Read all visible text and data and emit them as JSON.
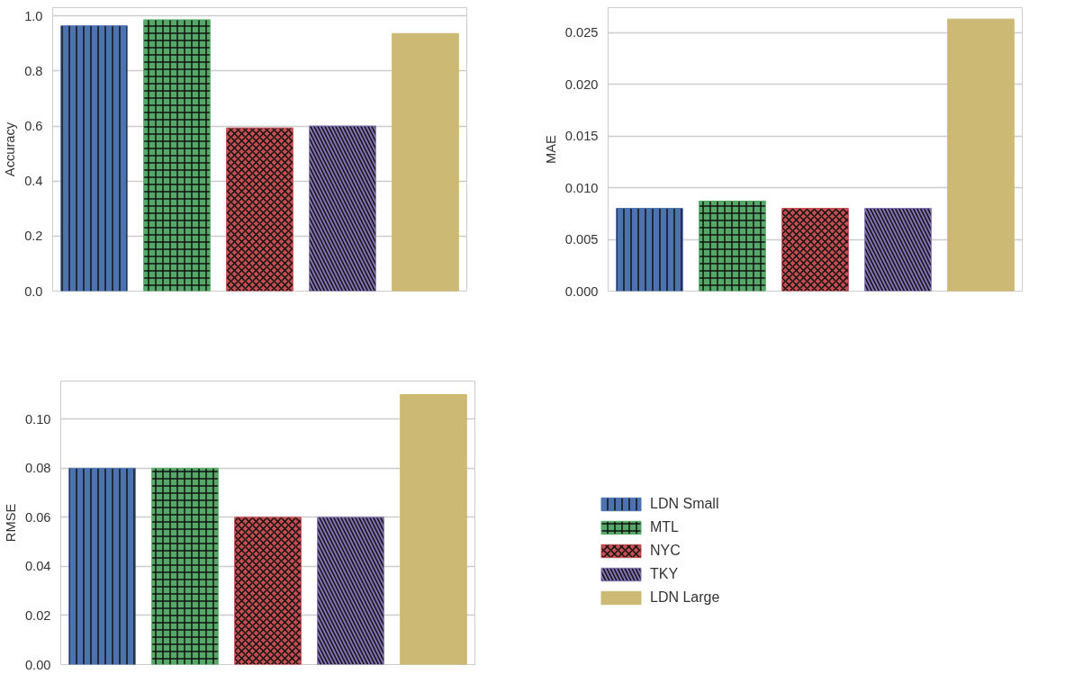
{
  "chart_data": [
    {
      "type": "bar",
      "ylabel": "Accuracy",
      "categories": [
        null
      ],
      "ylim": [
        0,
        1.03
      ],
      "yticks": [
        {
          "value": 0,
          "label": "0.0"
        },
        0.2,
        0.4,
        0.6,
        0.8,
        {
          "value": 1,
          "label": "1.0"
        }
      ],
      "grid": "y",
      "tick_labels": "y",
      "series": [
        {
          "color": "#4c72b0",
          "values": [
            0.964
          ]
        },
        {
          "color": "#55a868",
          "values": [
            0.986
          ]
        },
        {
          "color": "#c44e52",
          "values": [
            0.593
          ]
        },
        {
          "color": "#8172b2",
          "values": [
            0.6
          ]
        },
        {
          "color": "#ccb974",
          "values": [
            0.936
          ]
        }
      ]
    },
    {
      "type": "bar",
      "ylabel": "MAE",
      "categories": [
        null
      ],
      "ylim": [
        0,
        0.0274
      ],
      "yticks": [
        {
          "value": 0,
          "label": "0.000"
        },
        {
          "value": 0.005,
          "label": "0.005"
        },
        {
          "value": 0.01,
          "label": "0.010"
        },
        {
          "value": 0.015,
          "label": "0.015"
        },
        {
          "value": 0.02,
          "label": "0.020"
        },
        {
          "value": 0.025,
          "label": "0.025"
        }
      ],
      "grid": "y",
      "tick_labels": "y",
      "series": [
        {
          "color": "#4c72b0",
          "values": [
            0.008
          ]
        },
        {
          "color": "#55a868",
          "values": [
            0.0087
          ]
        },
        {
          "color": "#c44e52",
          "values": [
            0.008
          ]
        },
        {
          "color": "#8172b2",
          "values": [
            0.008
          ]
        },
        {
          "color": "#ccb974",
          "values": [
            0.0263
          ]
        }
      ]
    },
    {
      "type": "bar",
      "ylabel": "RMSE",
      "categories": [
        null
      ],
      "ylim": [
        0,
        0.1155
      ],
      "yticks": [
        {
          "value": 0,
          "label": "0.00"
        },
        0.02,
        0.04,
        0.06,
        0.08,
        {
          "value": 0.1,
          "label": "0.10"
        }
      ],
      "grid": "y",
      "tick_labels": "y",
      "legend": "right",
      "series": [
        {
          "name": "LDN Small",
          "color": "#4c72b0",
          "values": [
            0.08
          ]
        },
        {
          "name": "MTL",
          "color": "#55a868",
          "values": [
            0.08
          ]
        },
        {
          "name": "NYC",
          "color": "#c44e52",
          "values": [
            0.06
          ]
        },
        {
          "name": "TKY",
          "color": "#8172b2",
          "values": [
            0.06
          ]
        },
        {
          "name": "LDN Large",
          "color": "#ccb974",
          "values": [
            0.11
          ]
        }
      ]
    }
  ]
}
